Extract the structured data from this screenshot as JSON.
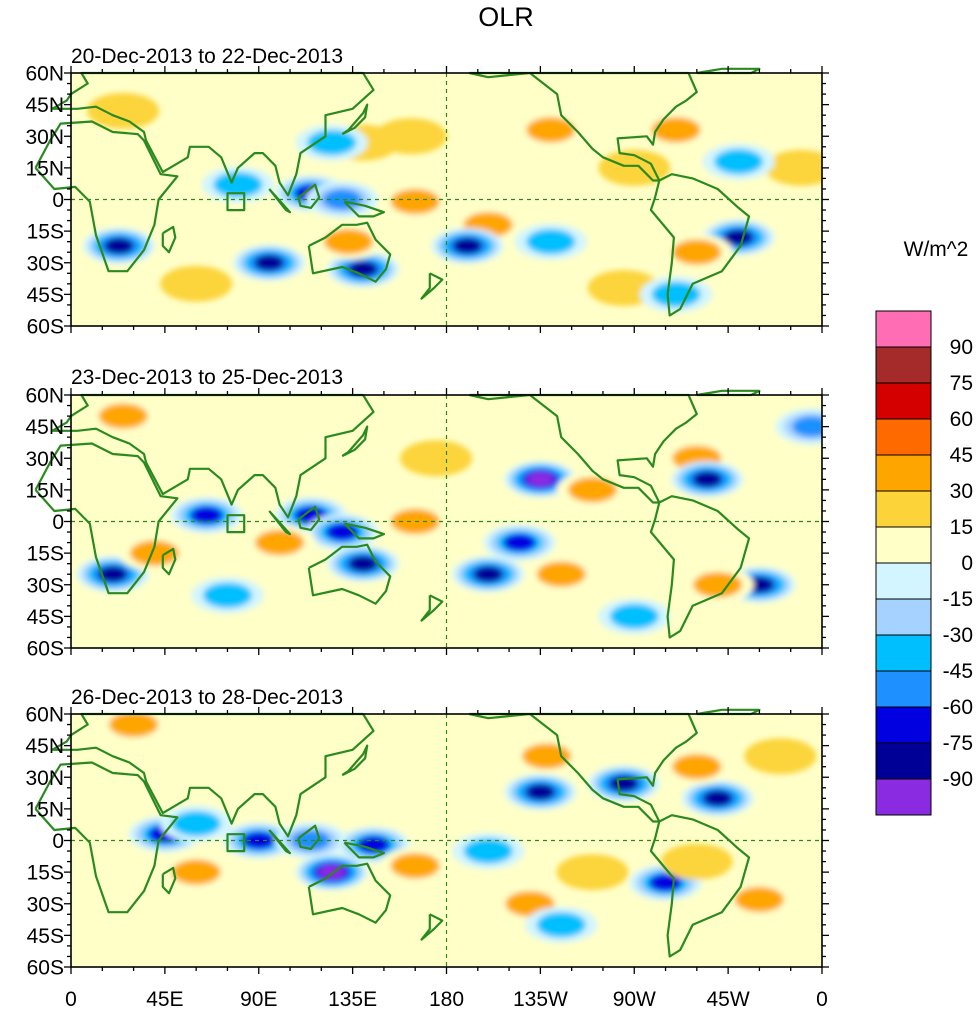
{
  "chart_data": {
    "type": "heatmap",
    "title": "OLR",
    "colorbar": {
      "unit": "W/m^2",
      "levels": [
        "90",
        "75",
        "60",
        "45",
        "30",
        "15",
        "0",
        "-15",
        "-30",
        "-45",
        "-60",
        "-75",
        "-90"
      ],
      "colors": [
        "#ff6eb4",
        "#a52a2a",
        "#d40000",
        "#ff6a00",
        "#ffa500",
        "#fcd43a",
        "#ffffc8",
        "#d2f5ff",
        "#a6d2ff",
        "#00bfff",
        "#1e90ff",
        "#0000e0",
        "#000096",
        "#8a2be2"
      ]
    },
    "x_tick_labels": [
      "0",
      "45E",
      "90E",
      "135E",
      "180",
      "135W",
      "90W",
      "45W",
      "0"
    ],
    "y_tick_labels": [
      "60N",
      "45N",
      "30N",
      "15N",
      "0",
      "15S",
      "30S",
      "45S",
      "60S"
    ],
    "xlim": [
      0,
      360
    ],
    "ylim": [
      -60,
      60
    ],
    "panels": [
      {
        "label": "20-Dec-2013 to 22-Dec-2013",
        "anomalies": [
          {
            "lon": 230,
            "lat": 33,
            "value": 30
          },
          {
            "lon": 163,
            "lat": 30,
            "value": 15
          },
          {
            "lon": 140,
            "lat": 27,
            "value": 15
          },
          {
            "lon": 290,
            "lat": 33,
            "value": 30
          },
          {
            "lon": 25,
            "lat": 42,
            "value": 15
          },
          {
            "lon": 350,
            "lat": 15,
            "value": 15
          },
          {
            "lon": 270,
            "lat": 15,
            "value": 15
          },
          {
            "lon": 125,
            "lat": 27,
            "value": -30
          },
          {
            "lon": 115,
            "lat": 3,
            "value": -60
          },
          {
            "lon": 130,
            "lat": 0,
            "value": -45
          },
          {
            "lon": 80,
            "lat": 7,
            "value": -30
          },
          {
            "lon": 23,
            "lat": -22,
            "value": -75
          },
          {
            "lon": 95,
            "lat": -30,
            "value": -75
          },
          {
            "lon": 140,
            "lat": -33,
            "value": -75
          },
          {
            "lon": 133,
            "lat": -20,
            "value": 30
          },
          {
            "lon": 165,
            "lat": -1,
            "value": 30
          },
          {
            "lon": 200,
            "lat": -12,
            "value": 30
          },
          {
            "lon": 190,
            "lat": -22,
            "value": -75
          },
          {
            "lon": 230,
            "lat": -20,
            "value": -30
          },
          {
            "lon": 320,
            "lat": -18,
            "value": -75
          },
          {
            "lon": 300,
            "lat": -25,
            "value": 30
          },
          {
            "lon": 265,
            "lat": -42,
            "value": 15
          },
          {
            "lon": 290,
            "lat": -45,
            "value": -30
          },
          {
            "lon": 60,
            "lat": -40,
            "value": 15
          },
          {
            "lon": 320,
            "lat": 18,
            "value": -30
          }
        ]
      },
      {
        "label": "23-Dec-2013 to 25-Dec-2013",
        "anomalies": [
          {
            "lon": 225,
            "lat": 20,
            "value": -90
          },
          {
            "lon": 300,
            "lat": 30,
            "value": 30
          },
          {
            "lon": 305,
            "lat": 20,
            "value": -75
          },
          {
            "lon": 25,
            "lat": 50,
            "value": 30
          },
          {
            "lon": 175,
            "lat": 30,
            "value": 15
          },
          {
            "lon": 355,
            "lat": 45,
            "value": -45
          },
          {
            "lon": 65,
            "lat": 3,
            "value": -60
          },
          {
            "lon": 115,
            "lat": 3,
            "value": -60
          },
          {
            "lon": 130,
            "lat": -5,
            "value": -60
          },
          {
            "lon": 140,
            "lat": -20,
            "value": -75
          },
          {
            "lon": 100,
            "lat": -10,
            "value": 30
          },
          {
            "lon": 165,
            "lat": 0,
            "value": 30
          },
          {
            "lon": 20,
            "lat": -25,
            "value": -75
          },
          {
            "lon": 40,
            "lat": -15,
            "value": 30
          },
          {
            "lon": 200,
            "lat": -25,
            "value": -75
          },
          {
            "lon": 235,
            "lat": -25,
            "value": 30
          },
          {
            "lon": 215,
            "lat": -10,
            "value": -60
          },
          {
            "lon": 330,
            "lat": -30,
            "value": -75
          },
          {
            "lon": 310,
            "lat": -30,
            "value": 30
          },
          {
            "lon": 250,
            "lat": 15,
            "value": 30
          },
          {
            "lon": 75,
            "lat": -35,
            "value": -30
          },
          {
            "lon": 270,
            "lat": -45,
            "value": -30
          }
        ]
      },
      {
        "label": "26-Dec-2013 to 28-Dec-2013",
        "anomalies": [
          {
            "lon": 225,
            "lat": 23,
            "value": -75
          },
          {
            "lon": 228,
            "lat": 40,
            "value": 30
          },
          {
            "lon": 265,
            "lat": 27,
            "value": -75
          },
          {
            "lon": 310,
            "lat": 20,
            "value": -75
          },
          {
            "lon": 300,
            "lat": 35,
            "value": 30
          },
          {
            "lon": 340,
            "lat": 40,
            "value": 15
          },
          {
            "lon": 30,
            "lat": 55,
            "value": 30
          },
          {
            "lon": 45,
            "lat": 3,
            "value": -60
          },
          {
            "lon": 60,
            "lat": 8,
            "value": -30
          },
          {
            "lon": 90,
            "lat": 0,
            "value": -60
          },
          {
            "lon": 115,
            "lat": 0,
            "value": -45
          },
          {
            "lon": 145,
            "lat": -2,
            "value": -60
          },
          {
            "lon": 125,
            "lat": -15,
            "value": -90
          },
          {
            "lon": 165,
            "lat": -12,
            "value": 30
          },
          {
            "lon": 60,
            "lat": -15,
            "value": 30
          },
          {
            "lon": 200,
            "lat": -5,
            "value": -30
          },
          {
            "lon": 220,
            "lat": -30,
            "value": 30
          },
          {
            "lon": 250,
            "lat": -15,
            "value": 15
          },
          {
            "lon": 285,
            "lat": -20,
            "value": -60
          },
          {
            "lon": 300,
            "lat": -10,
            "value": 15
          },
          {
            "lon": 330,
            "lat": -28,
            "value": 30
          },
          {
            "lon": 235,
            "lat": -40,
            "value": -30
          }
        ]
      }
    ]
  }
}
